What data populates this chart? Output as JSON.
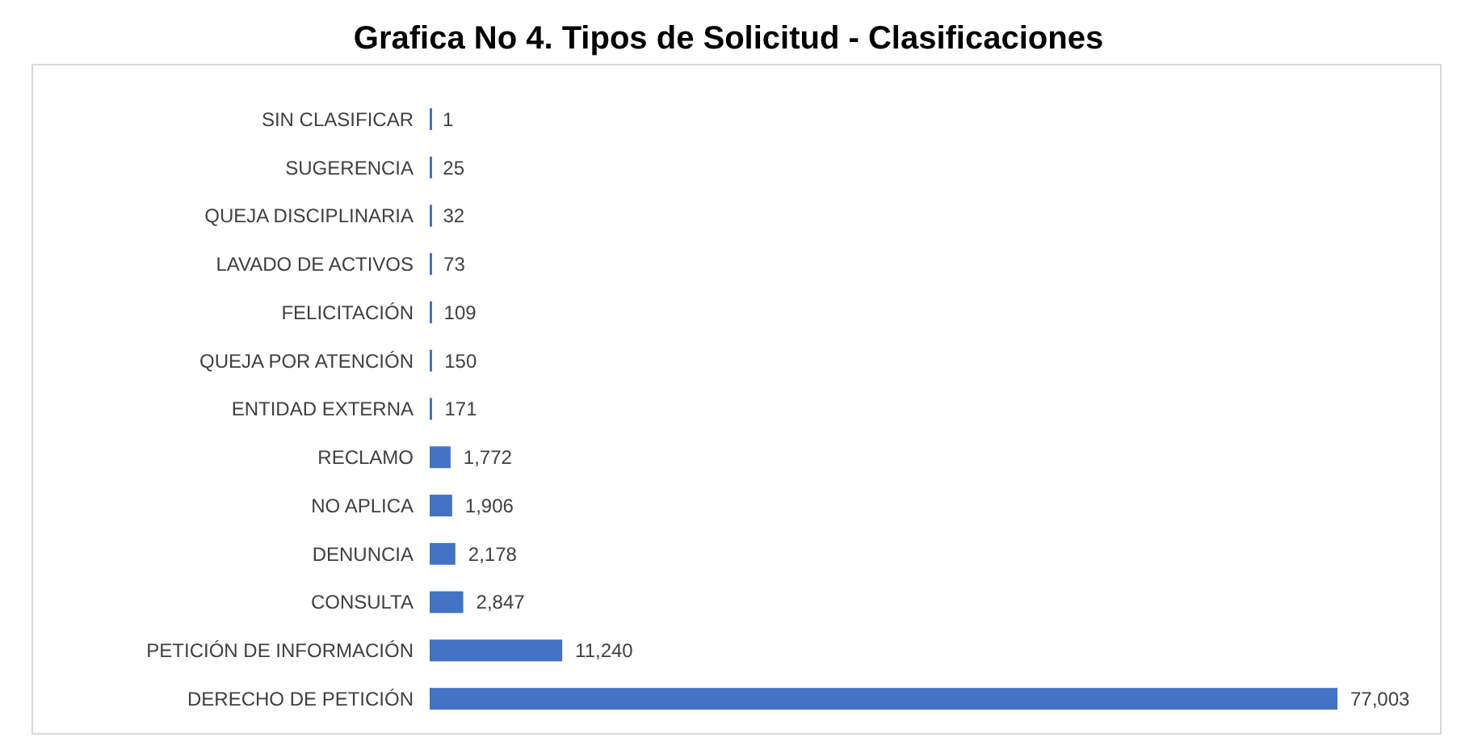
{
  "chart_data": {
    "type": "bar",
    "orientation": "horizontal",
    "title": "Grafica No 4. Tipos de Solicitud - Clasificaciones",
    "categories": [
      "SIN CLASIFICAR",
      "SUGERENCIA",
      "QUEJA DISCIPLINARIA",
      "LAVADO DE ACTIVOS",
      "FELICITACIÓN",
      "QUEJA POR ATENCIÓN",
      "ENTIDAD EXTERNA",
      "RECLAMO",
      "NO APLICA",
      "DENUNCIA",
      "CONSULTA",
      "PETICIÓN DE INFORMACIÓN",
      "DERECHO DE PETICIÓN"
    ],
    "values": [
      1,
      25,
      32,
      73,
      109,
      150,
      171,
      1772,
      1906,
      2178,
      2847,
      11240,
      77003
    ],
    "value_labels": [
      "1",
      "25",
      "32",
      "73",
      "109",
      "150",
      "171",
      "1,772",
      "1,906",
      "2,178",
      "2,847",
      "11,240",
      "77,003"
    ],
    "color": "#4472c4",
    "grid": false
  }
}
